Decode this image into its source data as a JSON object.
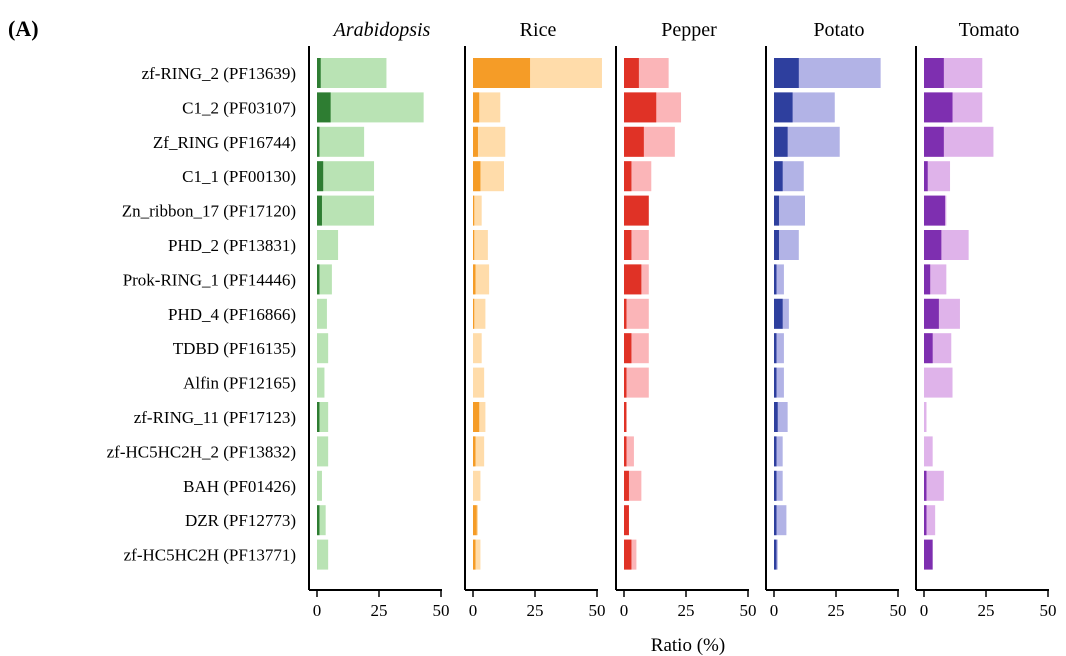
{
  "figure_label": "(A)",
  "x_axis_label": "Ratio (%)",
  "colors": {
    "Arabidopsis": {
      "dark": "#2e7d32",
      "light": "#b9e3b4"
    },
    "Rice": {
      "dark": "#f59c27",
      "light": "#ffdcaa"
    },
    "Pepper": {
      "dark": "#e03226",
      "light": "#fbb5b8"
    },
    "Potato": {
      "dark": "#2e3f9e",
      "light": "#b2b3e6"
    },
    "Tomato": {
      "dark": "#7e2fb0",
      "light": "#dfb3ea"
    }
  },
  "chart_data": {
    "type": "bar",
    "orientation": "horizontal",
    "stacked": true,
    "xlim": [
      0,
      50
    ],
    "xticks": [
      0,
      25,
      50
    ],
    "xlabel": "Ratio (%)",
    "categories": [
      "zf-RING_2 (PF13639)",
      "C1_2 (PF03107)",
      "Zf_RING (PF16744)",
      "C1_1 (PF00130)",
      "Zn_ribbon_17 (PF17120)",
      "PHD_2 (PF13831)",
      "Prok-RING_1 (PF14446)",
      "PHD_4 (PF16866)",
      "TDBD (PF16135)",
      "Alfin (PF12165)",
      "zf-RING_11 (PF17123)",
      "zf-HC5HC2H_2 (PF13832)",
      "BAH (PF01426)",
      "DZR (PF12773)",
      "zf-HC5HC2H (PF13771)"
    ],
    "panels": [
      {
        "title": "Arabidopsis",
        "italic": true,
        "dark": [
          1.5,
          5.5,
          1,
          2.5,
          2,
          0,
          1,
          0,
          0,
          0,
          1,
          0,
          0,
          1,
          0
        ],
        "total": [
          28,
          43,
          19,
          23,
          23,
          8.5,
          6,
          4,
          4.5,
          3,
          4.5,
          4.5,
          2,
          3.5,
          4.5
        ]
      },
      {
        "title": "Rice",
        "italic": false,
        "dark": [
          23,
          2.5,
          2,
          3,
          0.5,
          0.5,
          1,
          0.5,
          0,
          0,
          2.5,
          1,
          0,
          1.5,
          1
        ],
        "total": [
          52,
          11,
          13,
          12.5,
          3.5,
          6,
          6.5,
          5,
          3.5,
          4.5,
          5,
          4.5,
          3,
          2,
          3
        ]
      },
      {
        "title": "Pepper",
        "italic": false,
        "dark": [
          6,
          13,
          8,
          3,
          10,
          3,
          7,
          1,
          3,
          1,
          1,
          1,
          2,
          2,
          3
        ],
        "total": [
          18,
          23,
          20.5,
          11,
          10,
          10,
          10,
          10,
          10,
          10,
          1,
          4,
          7,
          2,
          5
        ]
      },
      {
        "title": "Potato",
        "italic": false,
        "dark": [
          10,
          7.5,
          5.5,
          3.5,
          2,
          2,
          1,
          3.5,
          1,
          1,
          1.5,
          1,
          1,
          1,
          1
        ],
        "total": [
          43,
          24.5,
          26.5,
          12,
          12.5,
          10,
          4,
          6,
          4,
          4,
          5.5,
          3.5,
          3.5,
          5,
          1.5
        ]
      },
      {
        "title": "Tomato",
        "italic": false,
        "dark": [
          8,
          11.5,
          8,
          1.5,
          8.5,
          7,
          2.5,
          6,
          3.5,
          0,
          0,
          0,
          1,
          1,
          3.5
        ],
        "total": [
          23.5,
          23.5,
          28,
          10.5,
          9,
          18,
          9,
          14.5,
          11,
          11.5,
          1,
          3.5,
          8,
          4.5,
          3.5
        ]
      }
    ]
  }
}
